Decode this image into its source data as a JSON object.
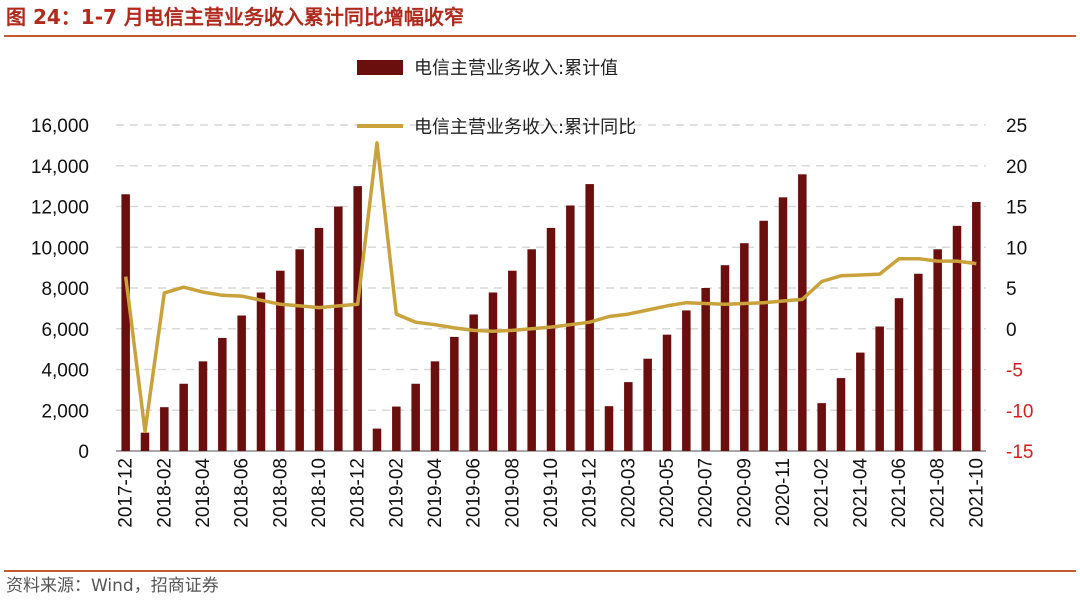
{
  "header": {
    "title": "图 24：1-7 月电信主营业务收入累计同比增幅收窄"
  },
  "footer": {
    "source": "资料来源：Wind，招商证券"
  },
  "colors": {
    "bar": "#6B0E0E",
    "line": "#C9A23C",
    "right_axis": "#D42020",
    "rule": "#C45A30",
    "title": "#B02A1E",
    "grid": "#D9D9D9"
  },
  "chart_data": {
    "type": "bar",
    "categories": [
      "2017-12",
      "2018-01",
      "2018-02",
      "2018-03",
      "2018-04",
      "2018-05",
      "2018-06",
      "2018-07",
      "2018-08",
      "2018-09",
      "2018-10",
      "2018-11",
      "2018-12",
      "2019-01",
      "2019-02",
      "2019-03",
      "2019-04",
      "2019-05",
      "2019-06",
      "2019-07",
      "2019-08",
      "2019-09",
      "2019-10",
      "2019-11",
      "2019-12",
      "2020-02",
      "2020-03",
      "2020-04",
      "2020-05",
      "2020-06",
      "2020-07",
      "2020-08",
      "2020-09",
      "2020-10",
      "2020-11",
      "2020-12",
      "2021-02",
      "2021-03",
      "2021-04",
      "2021-05",
      "2021-06",
      "2021-07",
      "2021-08",
      "2021-09",
      "2021-10"
    ],
    "tick_labels": [
      "2017-12",
      "2018-02",
      "2018-04",
      "2018-06",
      "2018-08",
      "2018-10",
      "2018-12",
      "2019-02",
      "2019-04",
      "2019-06",
      "2019-08",
      "2019-10",
      "2019-12",
      "2020-03",
      "2020-05",
      "2020-07",
      "2020-09",
      "2020-11",
      "2021-02",
      "2021-04",
      "2021-06",
      "2021-08",
      "2021-10"
    ],
    "series": [
      {
        "name": "电信主营业务收入:累计值",
        "type": "bar",
        "axis": "left",
        "values": [
          12600,
          900,
          2150,
          3300,
          4400,
          5550,
          6650,
          7780,
          8850,
          9900,
          10950,
          12000,
          13000,
          1100,
          2180,
          3300,
          4400,
          5600,
          6700,
          7780,
          8850,
          9900,
          10950,
          12050,
          13100,
          2200,
          3380,
          4530,
          5710,
          6900,
          8000,
          9120,
          10200,
          11300,
          12450,
          13580,
          2350,
          3580,
          4830,
          6110,
          7500,
          8700,
          9900,
          11050,
          12220
        ]
      },
      {
        "name": "电信主营业务收入:累计同比",
        "type": "line",
        "axis": "right",
        "values": [
          6.4,
          -12.6,
          4.4,
          5.1,
          4.5,
          4.1,
          4.0,
          3.5,
          3.0,
          2.8,
          2.6,
          2.8,
          3.0,
          22.8,
          1.8,
          0.8,
          0.5,
          0.1,
          -0.2,
          -0.3,
          -0.2,
          0.0,
          0.2,
          0.5,
          0.8,
          1.5,
          1.8,
          2.3,
          2.8,
          3.2,
          3.1,
          3.0,
          3.1,
          3.2,
          3.4,
          3.6,
          5.8,
          6.5,
          6.6,
          6.7,
          8.6,
          8.6,
          8.3,
          8.3,
          8.0
        ]
      }
    ],
    "y_left": {
      "min": 0,
      "max": 16000,
      "ticks": [
        0,
        2000,
        4000,
        6000,
        8000,
        10000,
        12000,
        14000,
        16000
      ],
      "tick_labels": [
        "0",
        "2,000",
        "4,000",
        "6,000",
        "8,000",
        "10,000",
        "12,000",
        "14,000",
        "16,000"
      ]
    },
    "y_right": {
      "min": -15,
      "max": 25,
      "ticks": [
        -15,
        -10,
        -5,
        0,
        5,
        10,
        15,
        20,
        25
      ],
      "tick_labels": [
        "-15",
        "-10",
        "-5",
        "0",
        "5",
        "10",
        "15",
        "20",
        "25"
      ]
    },
    "grid": true,
    "legend": {
      "placement": "top-center"
    }
  }
}
